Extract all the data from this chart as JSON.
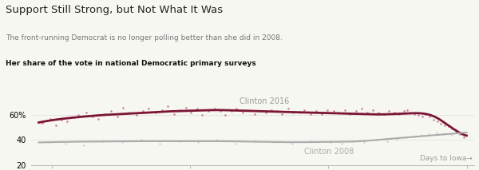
{
  "title": "Support Still Strong, but Not What It Was",
  "subtitle": "The front-running Democrat is no longer polling better than she did in 2008.",
  "axis_label": "Her share of the vote in national Democratic primary surveys",
  "xlabel": "Days to Iowa→",
  "ylim": [
    20,
    80
  ],
  "xlim": [
    -1150,
    20
  ],
  "yticks": [
    20,
    40,
    60
  ],
  "xticks": [
    -1095,
    -730,
    -365,
    0
  ],
  "color_2016_line": "#7b1535",
  "color_2016_scatter": "#c47090",
  "color_2008_line": "#aaaaaa",
  "color_2008_scatter": "#cccccc",
  "bg_color": "#f7f7f2",
  "label_2016": "Clinton 2016",
  "label_2008": "Clinton 2008",
  "curve_2016_x": [
    -1130,
    -1080,
    -1020,
    -960,
    -900,
    -840,
    -780,
    -720,
    -660,
    -600,
    -540,
    -480,
    -420,
    -360,
    -300,
    -240,
    -180,
    -140,
    -110,
    -80,
    -50,
    -25,
    -10,
    0
  ],
  "curve_2016_y": [
    54.0,
    56.5,
    58.5,
    60.0,
    61.0,
    62.0,
    63.0,
    63.5,
    64.0,
    63.5,
    63.0,
    62.5,
    62.0,
    61.5,
    61.0,
    60.5,
    61.0,
    61.5,
    61.0,
    58.0,
    52.0,
    47.0,
    44.5,
    43.5
  ],
  "curve_2008_x": [
    -1130,
    -1050,
    -950,
    -850,
    -750,
    -650,
    -550,
    -450,
    -350,
    -280,
    -220,
    -160,
    -100,
    -60,
    -20,
    0
  ],
  "curve_2008_y": [
    38.0,
    38.5,
    38.8,
    39.0,
    39.0,
    39.0,
    38.5,
    38.2,
    38.5,
    39.0,
    40.5,
    42.0,
    43.5,
    44.5,
    45.5,
    46.0
  ],
  "scatter_2016_x": [
    -1120,
    -1100,
    -1085,
    -1070,
    -1055,
    -1040,
    -1025,
    -1005,
    -988,
    -972,
    -955,
    -940,
    -922,
    -908,
    -890,
    -872,
    -855,
    -840,
    -822,
    -805,
    -790,
    -773,
    -758,
    -742,
    -728,
    -712,
    -698,
    -682,
    -665,
    -650,
    -638,
    -620,
    -608,
    -592,
    -578,
    -560,
    -548,
    -530,
    -515,
    -500,
    -488,
    -472,
    -458,
    -440,
    -428,
    -412,
    -398,
    -382,
    -368,
    -350,
    -338,
    -322,
    -308,
    -292,
    -278,
    -262,
    -248,
    -232,
    -218,
    -205,
    -190,
    -178,
    -165,
    -158,
    -148,
    -138,
    -128,
    -118,
    -108,
    -98,
    -88,
    -78,
    -68,
    -58,
    -48,
    -38,
    -28,
    -18,
    -8
  ],
  "scatter_2016_y": [
    54,
    57,
    52,
    56,
    55,
    58,
    60,
    62,
    59,
    57,
    61,
    63,
    59,
    66,
    62,
    60,
    63,
    65,
    62,
    64,
    67,
    61,
    64,
    66,
    62,
    65,
    60,
    63,
    65,
    63,
    60,
    63,
    65,
    62,
    64,
    61,
    63,
    62,
    64,
    63,
    61,
    65,
    62,
    62,
    64,
    61,
    63,
    61,
    64,
    63,
    62,
    64,
    61,
    63,
    65,
    62,
    64,
    62,
    61,
    63,
    62,
    61,
    63,
    64,
    62,
    61,
    60,
    59,
    61,
    59,
    56,
    55,
    53,
    52,
    51,
    49,
    47,
    45,
    42
  ],
  "scatter_2008_x": [
    -1100,
    -1060,
    -1010,
    -960,
    -910,
    -860,
    -810,
    -760,
    -710,
    -660,
    -610,
    -560,
    -510,
    -460,
    -410,
    -360,
    -330,
    -300,
    -270,
    -240,
    -210,
    -185,
    -160,
    -140,
    -120,
    -100,
    -80,
    -60,
    -40,
    -20
  ],
  "scatter_2008_y": [
    38,
    37,
    36,
    39,
    38,
    40,
    37,
    39,
    38,
    40,
    37,
    39,
    38,
    37,
    39,
    38,
    37,
    39,
    38,
    40,
    39,
    41,
    42,
    43,
    44,
    45,
    46,
    45,
    44,
    45
  ]
}
